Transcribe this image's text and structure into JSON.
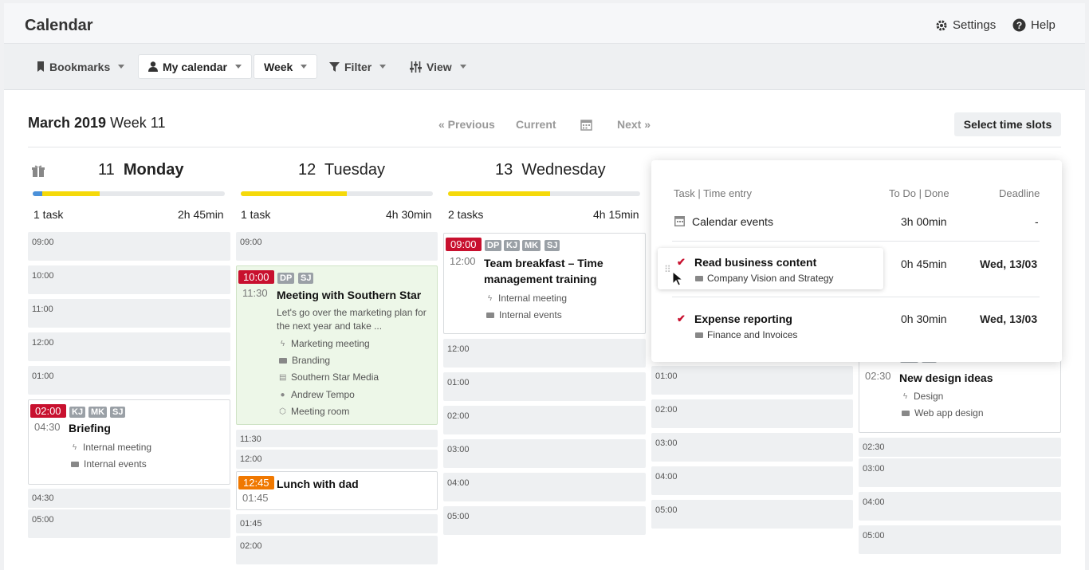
{
  "app": {
    "title": "Calendar",
    "settings_label": "Settings",
    "help_label": "Help"
  },
  "toolbar": {
    "bookmarks": "Bookmarks",
    "my_calendar": "My calendar",
    "week": "Week",
    "filter": "Filter",
    "view": "View"
  },
  "header": {
    "month_year": "March 2019",
    "week_label": "Week 11",
    "previous": "« Previous",
    "current": "Current",
    "next": "Next »",
    "select_slots": "Select time slots"
  },
  "days": [
    {
      "num": "11",
      "name": "Monday",
      "tasks": "1 task",
      "duration": "2h 45min"
    },
    {
      "num": "12",
      "name": "Tuesday",
      "tasks": "1 task",
      "duration": "4h 30min"
    },
    {
      "num": "13",
      "name": "Wednesday",
      "tasks": "2 tasks",
      "duration": "4h 15min"
    }
  ],
  "slots": {
    "mon": [
      "09:00",
      "10:00",
      "11:00",
      "12:00",
      "01:00",
      "04:30",
      "05:00"
    ],
    "tue": [
      "09:00",
      "11:30",
      "12:00",
      "01:45",
      "02:00"
    ],
    "wed": [
      "12:00",
      "01:00",
      "02:00",
      "03:00",
      "04:00",
      "05:00"
    ],
    "thu": [
      "01:00",
      "02:00",
      "03:00",
      "04:00",
      "05:00"
    ],
    "fri": [
      "02:30",
      "03:00",
      "04:00",
      "05:00"
    ]
  },
  "events": {
    "briefing": {
      "start": "02:00",
      "end": "04:30",
      "tags": [
        "KJ",
        "MK",
        "SJ"
      ],
      "title": "Briefing",
      "type": "Internal meeting",
      "project": "Internal events"
    },
    "southern": {
      "start": "10:00",
      "end": "11:30",
      "tags": [
        "DP",
        "SJ"
      ],
      "title": "Meeting with Southern Star",
      "desc1": "Let's go over the marketing plan for",
      "desc2": "the next year and take ...",
      "type": "Marketing meeting",
      "project": "Branding",
      "client": "Southern Star Media",
      "person": "Andrew Tempo",
      "room": "Meeting room"
    },
    "lunch": {
      "start": "12:45",
      "end": "01:45",
      "title": "Lunch with dad"
    },
    "breakfast": {
      "start": "09:00",
      "end": "12:00",
      "tags": [
        "DP",
        "KJ",
        "MK",
        "SJ"
      ],
      "title1": "Team breakfast – Time",
      "title2": "management training",
      "type": "Internal meeting",
      "project": "Internal events"
    },
    "design": {
      "end": "02:30",
      "tags": [
        "MK",
        "SJ"
      ],
      "title": "New design ideas",
      "type": "Design",
      "project": "Web app design"
    }
  },
  "popup": {
    "col1": "Task | Time entry",
    "col2": "To Do | Done",
    "col3": "Deadline",
    "calendar_events": "Calendar events",
    "calendar_time": "3h 00min",
    "calendar_deadline": "-",
    "tasks": [
      {
        "title": "Read business content",
        "project": "Company Vision and Strategy",
        "time": "0h 45min",
        "deadline": "Wed, 13/03"
      },
      {
        "title": "Expense reporting",
        "project": "Finance and Invoices",
        "time": "0h 30min",
        "deadline": "Wed, 13/03"
      }
    ]
  },
  "colors": {
    "red": "#c8102e",
    "orange": "#f07800",
    "yellow": "#f5d90a",
    "blue": "#4a90d9",
    "green_bg": "#edf7e8"
  },
  "progress": {
    "mon": {
      "blue": 0.05,
      "yellow": 0.3
    },
    "tue": {
      "yellow": 0.55
    },
    "wed": {
      "yellow": 0.53
    }
  }
}
